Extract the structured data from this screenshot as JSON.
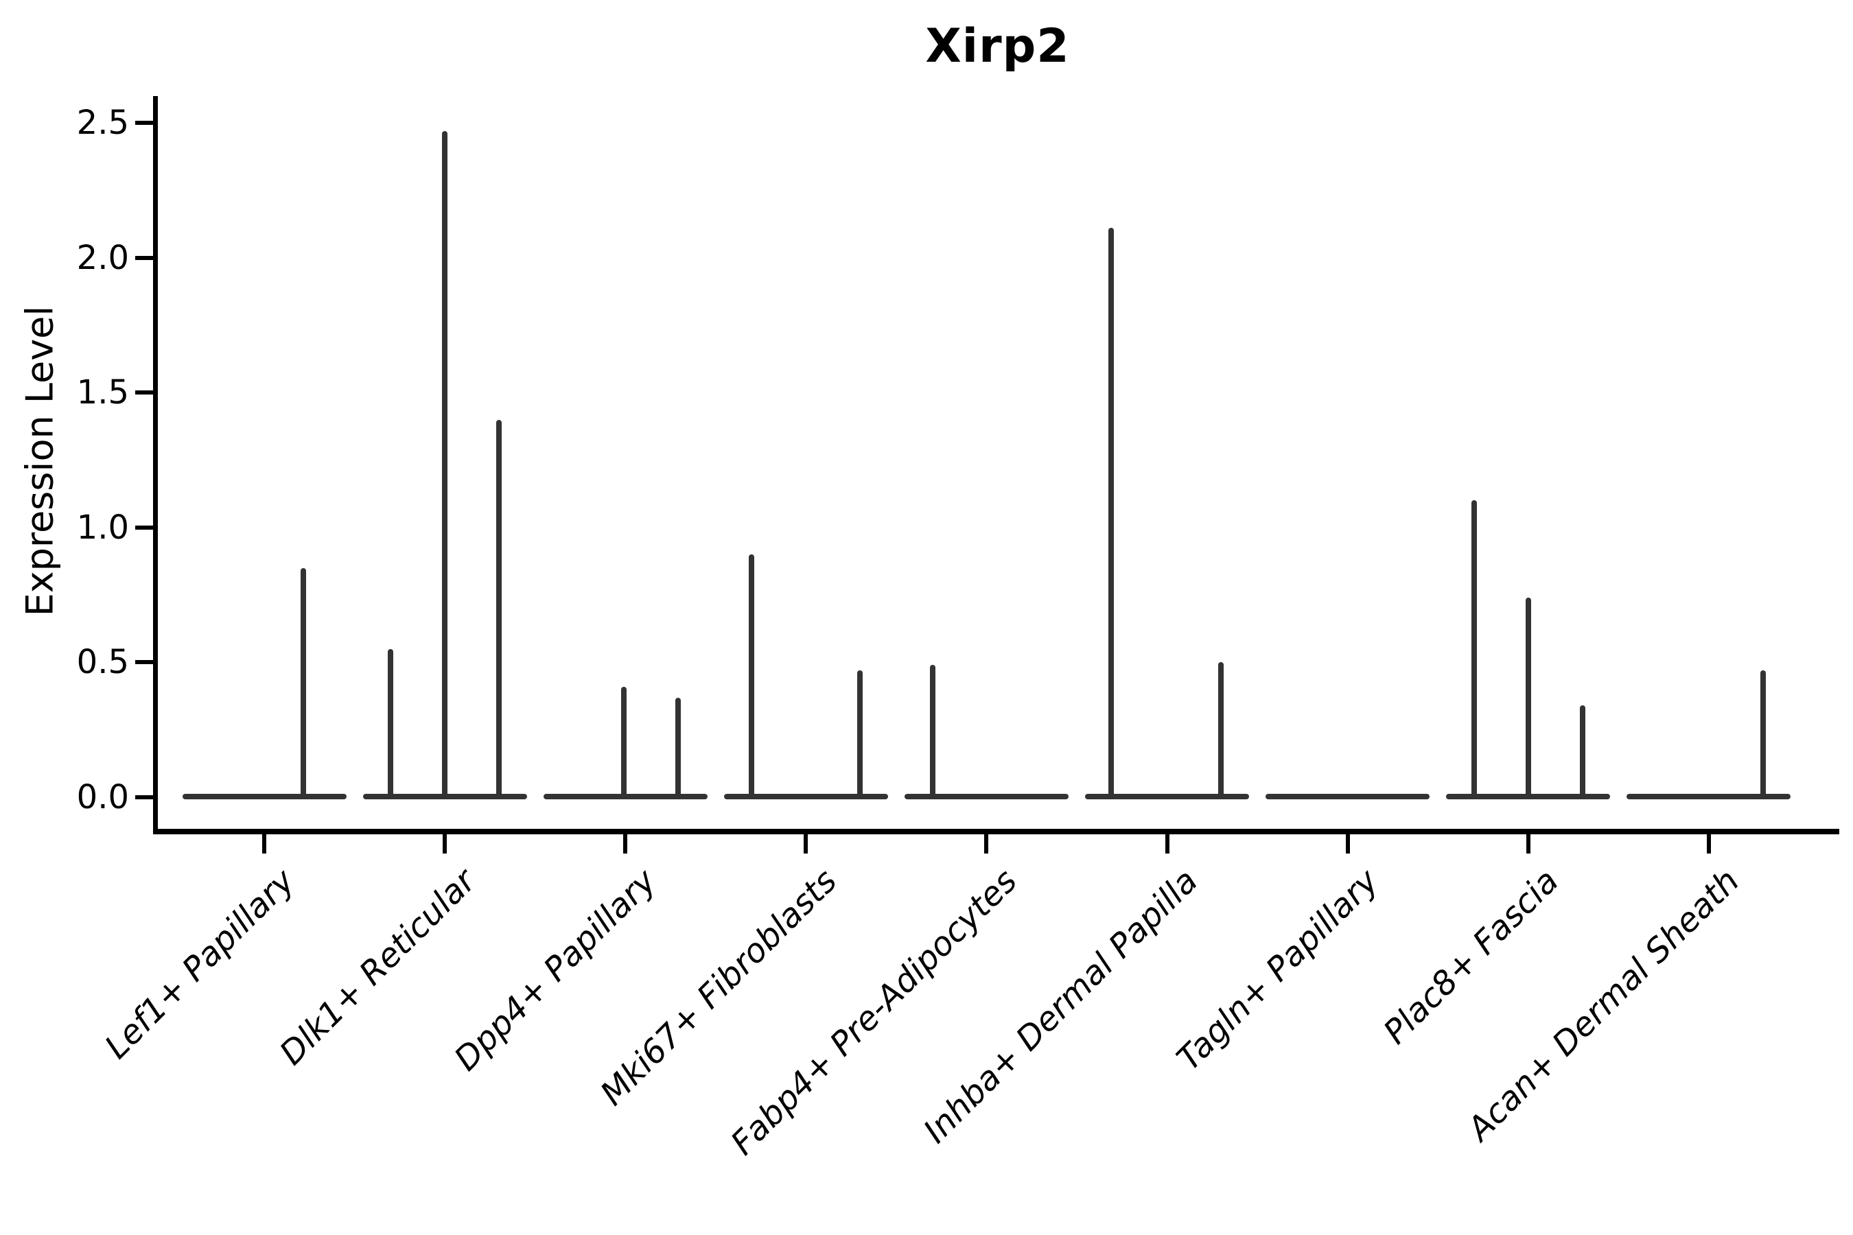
{
  "figure": {
    "background": "#ffffff"
  },
  "chart_data": {
    "type": "violin",
    "title": "Xirp2",
    "ylabel": "Expression Level",
    "xlabel": "",
    "ylim": [
      0,
      2.6
    ],
    "grid": false,
    "legend_position": "none",
    "yticks": [
      {
        "value": 0.0,
        "label": "0.0"
      },
      {
        "value": 0.5,
        "label": "0.5"
      },
      {
        "value": 1.0,
        "label": "1.0"
      },
      {
        "value": 1.5,
        "label": "1.5"
      },
      {
        "value": 2.0,
        "label": "2.0"
      },
      {
        "value": 2.5,
        "label": "2.5"
      }
    ],
    "categories": [
      "Lef1+ Papillary",
      "Dlk1+ Reticular",
      "Dpp4+ Papillary",
      "Mki67+ Fibroblasts",
      "Fabp4+ Pre-Adipocytes",
      "Inhba+ Dermal Papilla",
      "Tagln+ Papillary",
      "Plac8+ Fascia",
      "Acan+ Dermal Sheath"
    ],
    "violins": [
      {
        "category": "Lef1+ Papillary",
        "base_value": 0.0,
        "spikes": [
          {
            "pos": 0.74,
            "value": 0.85
          }
        ]
      },
      {
        "category": "Dlk1+ Reticular",
        "base_value": 0.0,
        "spikes": [
          {
            "pos": 0.17,
            "value": 0.55
          },
          {
            "pos": 0.5,
            "value": 2.47
          },
          {
            "pos": 0.83,
            "value": 1.4
          }
        ]
      },
      {
        "category": "Dpp4+ Papillary",
        "base_value": 0.0,
        "spikes": [
          {
            "pos": 0.49,
            "value": 0.41
          },
          {
            "pos": 0.82,
            "value": 0.37
          }
        ]
      },
      {
        "category": "Mki67+ Fibroblasts",
        "base_value": 0.0,
        "spikes": [
          {
            "pos": 0.17,
            "value": 0.9
          },
          {
            "pos": 0.83,
            "value": 0.47
          }
        ]
      },
      {
        "category": "Fabp4+ Pre-Adipocytes",
        "base_value": 0.0,
        "spikes": [
          {
            "pos": 0.17,
            "value": 0.49
          }
        ]
      },
      {
        "category": "Inhba+ Dermal Papilla",
        "base_value": 0.0,
        "spikes": [
          {
            "pos": 0.16,
            "value": 2.11
          },
          {
            "pos": 0.83,
            "value": 0.5
          }
        ]
      },
      {
        "category": "Tagln+ Papillary",
        "base_value": 0.0,
        "spikes": []
      },
      {
        "category": "Plac8+ Fascia",
        "base_value": 0.0,
        "spikes": [
          {
            "pos": 0.17,
            "value": 1.1
          },
          {
            "pos": 0.5,
            "value": 0.74
          },
          {
            "pos": 0.83,
            "value": 0.34
          }
        ]
      },
      {
        "category": "Acan+ Dermal Sheath",
        "base_value": 0.0,
        "spikes": [
          {
            "pos": 0.83,
            "value": 0.47
          }
        ]
      }
    ],
    "colors": {
      "violin": "#333333",
      "axis": "#000000",
      "text": "#000000",
      "background": "#ffffff"
    }
  }
}
